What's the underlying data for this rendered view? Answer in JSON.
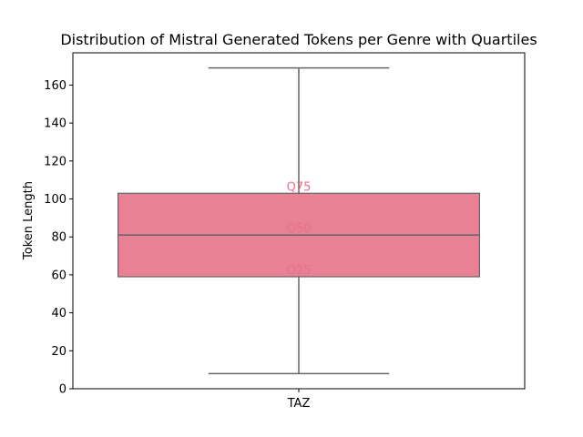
{
  "chart_data": {
    "type": "box",
    "title": "Distribution of Mistral Generated Tokens per Genre with Quartiles",
    "xlabel": "",
    "ylabel": "Token Length",
    "categories": [
      "TAZ"
    ],
    "ylim": [
      0,
      177
    ],
    "yticks": [
      0,
      20,
      40,
      60,
      80,
      100,
      120,
      140,
      160
    ],
    "boxes": [
      {
        "category": "TAZ",
        "whisker_low": 8,
        "q1": 59,
        "median": 81,
        "q3": 103,
        "whisker_high": 169
      }
    ],
    "quartile_labels": [
      "Q75",
      "Q50",
      "Q25"
    ],
    "colors": {
      "box_fill": "#e88194",
      "box_edge": "#666666",
      "label_color": "#e8708c"
    },
    "grid": false,
    "legend": "none"
  }
}
